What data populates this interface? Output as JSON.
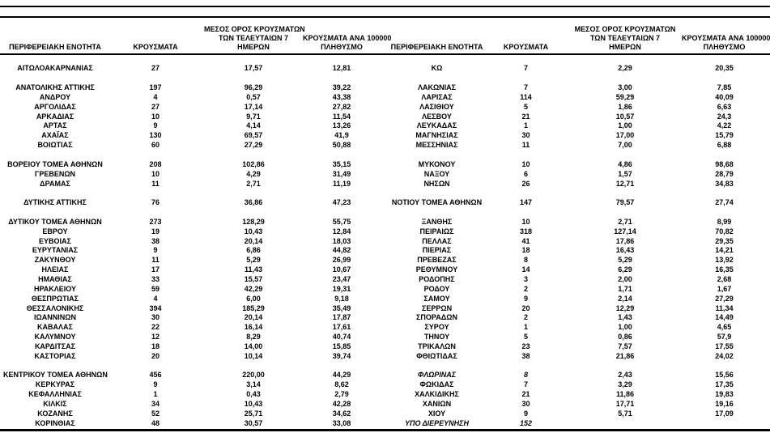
{
  "page": {
    "background": "#ffffff",
    "text_color": "#000000",
    "rule_color": "#000000"
  },
  "headers": {
    "region": "ΠΕΡΙΦΕΡΕΙΑΚΗ ΕΝΟΤΗΤΑ",
    "cases": "ΚΡΟΥΣΜΑΤΑ",
    "avg7": [
      "ΜΕΣΟΣ ΟΡΟΣ ΚΡΟΥΣΜΑΤΩΝ",
      "ΤΩΝ ΤΕΛΕΥΤΑΙΩΝ 7",
      "ΗΜΕΡΩΝ"
    ],
    "per100k": [
      "ΚΡΟΥΣΜΑΤΑ ΑΝΑ 100000",
      "ΠΛΗΘΥΣΜΟ"
    ]
  },
  "left_rows": [
    {
      "name": "ΑΙΤΩΛΟΑΚΑΡΝΑΝΙΑΣ",
      "cases": "27",
      "avg": "17,57",
      "per100k": "12,81"
    },
    null,
    {
      "name": "ΑΝΑΤΟΛΙΚΗΣ ΑΤΤΙΚΗΣ",
      "cases": "197",
      "avg": "96,29",
      "per100k": "39,22"
    },
    {
      "name": "ΑΝΔΡΟΥ",
      "cases": "4",
      "avg": "0,57",
      "per100k": "43,38"
    },
    {
      "name": "ΑΡΓΟΛΙΔΑΣ",
      "cases": "27",
      "avg": "17,14",
      "per100k": "27,82"
    },
    {
      "name": "ΑΡΚΑΔΙΑΣ",
      "cases": "10",
      "avg": "9,71",
      "per100k": "11,54"
    },
    {
      "name": "ΑΡΤΑΣ",
      "cases": "9",
      "avg": "4,14",
      "per100k": "13,26"
    },
    {
      "name": "ΑΧΑΪΑΣ",
      "cases": "130",
      "avg": "69,57",
      "per100k": "41,9"
    },
    {
      "name": "ΒΟΙΩΤΙΑΣ",
      "cases": "60",
      "avg": "27,29",
      "per100k": "50,88"
    },
    null,
    {
      "name": "ΒΟΡΕΙΟΥ ΤΟΜΕΑ ΑΘΗΝΩΝ",
      "cases": "208",
      "avg": "102,86",
      "per100k": "35,15"
    },
    {
      "name": "ΓΡΕΒΕΝΩΝ",
      "cases": "10",
      "avg": "4,29",
      "per100k": "31,49"
    },
    {
      "name": "ΔΡΑΜΑΣ",
      "cases": "11",
      "avg": "2,71",
      "per100k": "11,19"
    },
    null,
    {
      "name": "ΔΥΤΙΚΗΣ ΑΤΤΙΚΗΣ",
      "cases": "76",
      "avg": "36,86",
      "per100k": "47,23"
    },
    null,
    {
      "name": "ΔΥΤΙΚΟΥ ΤΟΜΕΑ ΑΘΗΝΩΝ",
      "cases": "273",
      "avg": "128,29",
      "per100k": "55,75"
    },
    {
      "name": "ΕΒΡΟΥ",
      "cases": "19",
      "avg": "10,43",
      "per100k": "12,84"
    },
    {
      "name": "ΕΥΒΟΙΑΣ",
      "cases": "38",
      "avg": "20,14",
      "per100k": "18,03"
    },
    {
      "name": "ΕΥΡΥΤΑΝΙΑΣ",
      "cases": "9",
      "avg": "6,86",
      "per100k": "44,82"
    },
    {
      "name": "ΖΑΚΥΝΘΟΥ",
      "cases": "11",
      "avg": "5,29",
      "per100k": "26,99"
    },
    {
      "name": "ΗΛΕΙΑΣ",
      "cases": "17",
      "avg": "11,43",
      "per100k": "10,67"
    },
    {
      "name": "ΗΜΑΘΙΑΣ",
      "cases": "33",
      "avg": "15,57",
      "per100k": "23,47"
    },
    {
      "name": "ΗΡΑΚΛΕΙΟΥ",
      "cases": "59",
      "avg": "42,29",
      "per100k": "19,31"
    },
    {
      "name": "ΘΕΣΠΡΩΤΙΑΣ",
      "cases": "4",
      "avg": "6,00",
      "per100k": "9,18"
    },
    {
      "name": "ΘΕΣΣΑΛΟΝΙΚΗΣ",
      "cases": "394",
      "avg": "185,29",
      "per100k": "35,49"
    },
    {
      "name": "ΙΩΑΝΝΙΝΩΝ",
      "cases": "30",
      "avg": "20,14",
      "per100k": "17,87"
    },
    {
      "name": "ΚΑΒΑΛΑΣ",
      "cases": "22",
      "avg": "16,14",
      "per100k": "17,61"
    },
    {
      "name": "ΚΑΛΥΜΝΟΥ",
      "cases": "12",
      "avg": "8,29",
      "per100k": "40,74"
    },
    {
      "name": "ΚΑΡΔΙΤΣΑΣ",
      "cases": "18",
      "avg": "14,00",
      "per100k": "15,85"
    },
    {
      "name": "ΚΑΣΤΟΡΙΑΣ",
      "cases": "20",
      "avg": "10,14",
      "per100k": "39,74"
    },
    null,
    {
      "name": "ΚΕΝΤΡΙΚΟΥ ΤΟΜΕΑ ΑΘΗΝΩΝ",
      "cases": "456",
      "avg": "220,00",
      "per100k": "44,29"
    },
    {
      "name": "ΚΕΡΚΥΡΑΣ",
      "cases": "9",
      "avg": "3,14",
      "per100k": "8,62"
    },
    {
      "name": "ΚΕΦΑΛΛΗΝΙΑΣ",
      "cases": "1",
      "avg": "0,43",
      "per100k": "2,79"
    },
    {
      "name": "ΚΙΛΚΙΣ",
      "cases": "34",
      "avg": "10,43",
      "per100k": "42,28"
    },
    {
      "name": "ΚΟΖΑΝΗΣ",
      "cases": "52",
      "avg": "25,71",
      "per100k": "34,62"
    },
    {
      "name": "ΚΟΡΙΝΘΙΑΣ",
      "cases": "48",
      "avg": "30,57",
      "per100k": "33,08"
    }
  ],
  "right_rows": [
    {
      "name": "ΚΩ",
      "cases": "7",
      "avg": "2,29",
      "per100k": "20,35"
    },
    null,
    {
      "name": "ΛΑΚΩΝΙΑΣ",
      "cases": "7",
      "avg": "3,00",
      "per100k": "7,85"
    },
    {
      "name": "ΛΑΡΙΣΑΣ",
      "cases": "114",
      "avg": "59,29",
      "per100k": "40,09"
    },
    {
      "name": "ΛΑΣΙΘΙΟΥ",
      "cases": "5",
      "avg": "1,86",
      "per100k": "6,63"
    },
    {
      "name": "ΛΕΣΒΟΥ",
      "cases": "21",
      "avg": "10,57",
      "per100k": "24,3"
    },
    {
      "name": "ΛΕΥΚΑΔΑΣ",
      "cases": "1",
      "avg": "1,00",
      "per100k": "4,22"
    },
    {
      "name": "ΜΑΓΝΗΣΙΑΣ",
      "cases": "30",
      "avg": "17,00",
      "per100k": "15,79"
    },
    {
      "name": "ΜΕΣΣΗΝΙΑΣ",
      "cases": "11",
      "avg": "7,00",
      "per100k": "6,88"
    },
    null,
    {
      "name": "ΜΥΚΟΝΟΥ",
      "cases": "10",
      "avg": "4,86",
      "per100k": "98,68"
    },
    {
      "name": "ΝΑΞΟΥ",
      "cases": "6",
      "avg": "1,57",
      "per100k": "28,79"
    },
    {
      "name": "ΝΗΣΩΝ",
      "cases": "26",
      "avg": "12,71",
      "per100k": "34,83"
    },
    null,
    {
      "name": "ΝΟΤΙΟΥ ΤΟΜΕΑ ΑΘΗΝΩΝ",
      "cases": "147",
      "avg": "79,57",
      "per100k": "27,74"
    },
    null,
    {
      "name": "ΞΑΝΘΗΣ",
      "cases": "10",
      "avg": "2,71",
      "per100k": "8,99"
    },
    {
      "name": "ΠΕΙΡΑΙΩΣ",
      "cases": "318",
      "avg": "127,14",
      "per100k": "70,82"
    },
    {
      "name": "ΠΕΛΛΑΣ",
      "cases": "41",
      "avg": "17,86",
      "per100k": "29,35"
    },
    {
      "name": "ΠΙΕΡΙΑΣ",
      "cases": "18",
      "avg": "16,43",
      "per100k": "14,21"
    },
    {
      "name": "ΠΡΕΒΕΖΑΣ",
      "cases": "8",
      "avg": "5,29",
      "per100k": "13,92"
    },
    {
      "name": "ΡΕΘΥΜΝΟΥ",
      "cases": "14",
      "avg": "6,29",
      "per100k": "16,35"
    },
    {
      "name": "ΡΟΔΟΠΗΣ",
      "cases": "3",
      "avg": "2,00",
      "per100k": "2,68"
    },
    {
      "name": "ΡΟΔΟΥ",
      "cases": "2",
      "avg": "1,71",
      "per100k": "1,67"
    },
    {
      "name": "ΣΑΜΟΥ",
      "cases": "9",
      "avg": "2,14",
      "per100k": "27,29"
    },
    {
      "name": "ΣΕΡΡΩΝ",
      "cases": "20",
      "avg": "12,29",
      "per100k": "11,34"
    },
    {
      "name": "ΣΠΟΡΑΔΩΝ",
      "cases": "2",
      "avg": "1,43",
      "per100k": "14,49"
    },
    {
      "name": "ΣΥΡΟΥ",
      "cases": "1",
      "avg": "1,00",
      "per100k": "4,65"
    },
    {
      "name": "ΤΗΝΟΥ",
      "cases": "5",
      "avg": "0,86",
      "per100k": "57,9"
    },
    {
      "name": "ΤΡΙΚΑΛΩΝ",
      "cases": "23",
      "avg": "7,57",
      "per100k": "17,55"
    },
    {
      "name": "ΦΘΙΩΤΙΔΑΣ",
      "cases": "38",
      "avg": "21,86",
      "per100k": "24,02"
    },
    null,
    {
      "name": "ΦΛΩΡΙΝΑΣ",
      "cases": "8",
      "avg": "2,43",
      "per100k": "15,56",
      "italic_name": true,
      "italic_cases": true
    },
    {
      "name": "ΦΩΚΙΔΑΣ",
      "cases": "7",
      "avg": "3,29",
      "per100k": "17,35"
    },
    {
      "name": "ΧΑΛΚΙΔΙΚΗΣ",
      "cases": "21",
      "avg": "11,86",
      "per100k": "19,83"
    },
    {
      "name": "ΧΑΝΙΩΝ",
      "cases": "30",
      "avg": "17,71",
      "per100k": "19,16"
    },
    {
      "name": "ΧΙΟΥ",
      "cases": "9",
      "avg": "5,71",
      "per100k": "17,09"
    },
    {
      "name": "ΥΠΟ ΔΙΕΡΕΥΝΗΣΗ",
      "cases": "152",
      "avg": "",
      "per100k": "",
      "italic_name": true,
      "italic_cases": true
    }
  ]
}
